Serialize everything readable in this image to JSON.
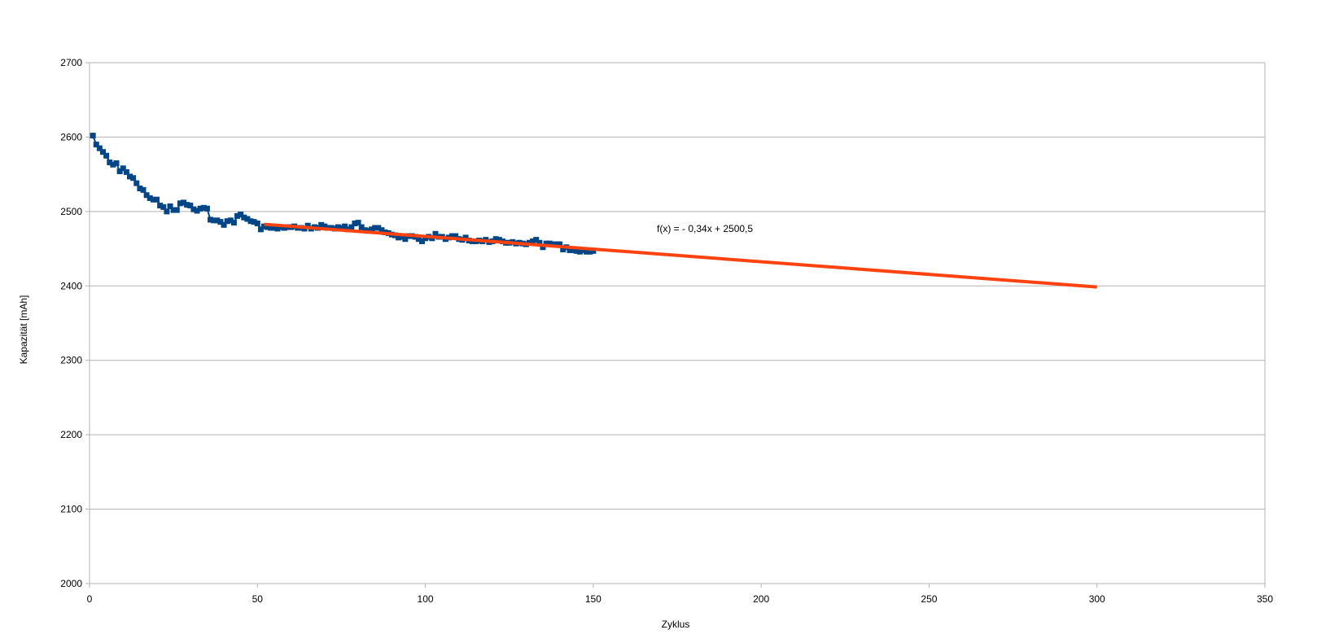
{
  "chart_data": {
    "type": "scatter",
    "title": "",
    "xlabel": "Zyklus",
    "ylabel": "Kapazität [mAh]",
    "xlim": [
      0,
      350
    ],
    "ylim": [
      2000,
      2700
    ],
    "xticks": [
      "0",
      "50",
      "100",
      "150",
      "200",
      "250",
      "300",
      "350"
    ],
    "yticks": [
      "2000",
      "2100",
      "2200",
      "2300",
      "2400",
      "2500",
      "2600",
      "2700"
    ],
    "grid": "horizontal",
    "legend": "none",
    "colors": {
      "series": "#004586",
      "trend": "#ff420e",
      "grid": "#b3b3b3",
      "axis": "#b3b3b3"
    },
    "series": [
      {
        "x": [
          1,
          2,
          3,
          4,
          5,
          6,
          7,
          8,
          9,
          10,
          11,
          12,
          13,
          14,
          15,
          16,
          17,
          18,
          19,
          20,
          21,
          22,
          23,
          24,
          25,
          26,
          27,
          28,
          29,
          30,
          31,
          32,
          33,
          34,
          35,
          36,
          37,
          38,
          39,
          40,
          41,
          42,
          43,
          44,
          45,
          46,
          47,
          48,
          49,
          50,
          51,
          52,
          53,
          54,
          55,
          56,
          57,
          58,
          59,
          60,
          61,
          62,
          63,
          64,
          65,
          66,
          67,
          68,
          69,
          70,
          71,
          72,
          73,
          74,
          75,
          76,
          77,
          78,
          79,
          80,
          81,
          82,
          83,
          84,
          85,
          86,
          87,
          88,
          89,
          90,
          91,
          92,
          93,
          94,
          95,
          96,
          97,
          98,
          99,
          100,
          101,
          102,
          103,
          104,
          105,
          106,
          107,
          108,
          109,
          110,
          111,
          112,
          113,
          114,
          115,
          116,
          117,
          118,
          119,
          120,
          121,
          122,
          123,
          124,
          125,
          126,
          127,
          128,
          129,
          130,
          131,
          132,
          133,
          134,
          135,
          136,
          137,
          138,
          139,
          140,
          141,
          142,
          143,
          144,
          145,
          146,
          147,
          148,
          149,
          150
        ],
        "values": [
          2602,
          2590,
          2585,
          2580,
          2575,
          2566,
          2563,
          2565,
          2554,
          2558,
          2553,
          2547,
          2545,
          2538,
          2531,
          2529,
          2522,
          2518,
          2516,
          2516,
          2508,
          2506,
          2500,
          2507,
          2502,
          2502,
          2511,
          2512,
          2509,
          2508,
          2503,
          2501,
          2504,
          2505,
          2504,
          2489,
          2488,
          2488,
          2486,
          2482,
          2487,
          2488,
          2485,
          2494,
          2496,
          2492,
          2490,
          2487,
          2486,
          2484,
          2476,
          2480,
          2479,
          2478,
          2478,
          2477,
          2479,
          2478,
          2479,
          2479,
          2480,
          2478,
          2478,
          2477,
          2481,
          2477,
          2479,
          2478,
          2482,
          2480,
          2478,
          2478,
          2477,
          2479,
          2478,
          2480,
          2476,
          2479,
          2484,
          2485,
          2479,
          2475,
          2474,
          2476,
          2478,
          2478,
          2475,
          2472,
          2471,
          2469,
          2468,
          2465,
          2466,
          2463,
          2467,
          2467,
          2466,
          2463,
          2460,
          2464,
          2466,
          2464,
          2470,
          2466,
          2466,
          2463,
          2465,
          2467,
          2467,
          2463,
          2462,
          2465,
          2461,
          2460,
          2460,
          2461,
          2460,
          2462,
          2459,
          2460,
          2463,
          2462,
          2460,
          2458,
          2458,
          2459,
          2457,
          2458,
          2457,
          2456,
          2458,
          2460,
          2462,
          2458,
          2452,
          2457,
          2457,
          2456,
          2456,
          2456,
          2449,
          2452,
          2448,
          2448,
          2447,
          2446,
          2448,
          2446,
          2446,
          2447
        ]
      }
    ],
    "trendline": {
      "label": "f(x) =  - 0,34x + 2500,5",
      "slope": -0.34,
      "intercept": 2500.5,
      "x_range": [
        52,
        300
      ]
    }
  }
}
